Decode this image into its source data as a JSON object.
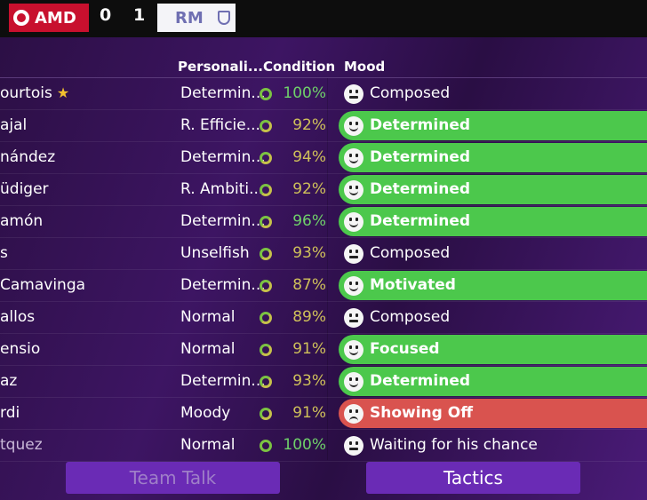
{
  "scoreboard": {
    "home_abbr": "AMD",
    "home_score": "0",
    "away_score": "1",
    "away_abbr": "RM",
    "home_color": "#c8102e",
    "away_color": "#6f6fb2"
  },
  "table": {
    "headers": {
      "personality": "Personali...",
      "condition": "Condition",
      "mood": "Mood"
    },
    "rows": [
      {
        "name": "ourtois",
        "star": "★",
        "personality": "Determin...",
        "condition": "100%",
        "mood": "Composed",
        "mood_style": "plain"
      },
      {
        "name": "ajal",
        "personality": "R. Efficie...",
        "condition": "92%",
        "mood": "Determined",
        "mood_style": "green"
      },
      {
        "name": "nández",
        "personality": "Determin...",
        "condition": "94%",
        "mood": "Determined",
        "mood_style": "green"
      },
      {
        "name": "üdiger",
        "personality": "R. Ambiti...",
        "condition": "92%",
        "mood": "Determined",
        "mood_style": "green"
      },
      {
        "name": "amón",
        "personality": "Determin...",
        "condition": "96%",
        "mood": "Determined",
        "mood_style": "green"
      },
      {
        "name": "s",
        "personality": "Unselfish",
        "condition": "93%",
        "mood": "Composed",
        "mood_style": "plain"
      },
      {
        "name": "Camavinga",
        "personality": "Determin...",
        "condition": "87%",
        "mood": "Motivated",
        "mood_style": "green"
      },
      {
        "name": "allos",
        "personality": "Normal",
        "condition": "89%",
        "mood": "Composed",
        "mood_style": "plain"
      },
      {
        "name": "ensio",
        "personality": "Normal",
        "condition": "91%",
        "mood": "Focused",
        "mood_style": "green"
      },
      {
        "name": "az",
        "personality": "Determin...",
        "condition": "93%",
        "mood": "Determined",
        "mood_style": "green"
      },
      {
        "name": "rdi",
        "personality": "Moody",
        "condition": "91%",
        "mood": "Showing Off",
        "mood_style": "red"
      },
      {
        "name": "tquez",
        "personality": "Normal",
        "condition": "100%",
        "mood": "Waiting for his chance",
        "mood_style": "plain"
      }
    ]
  },
  "footer": {
    "team_talk_label": "Team Talk",
    "tactics_label": "Tactics"
  }
}
